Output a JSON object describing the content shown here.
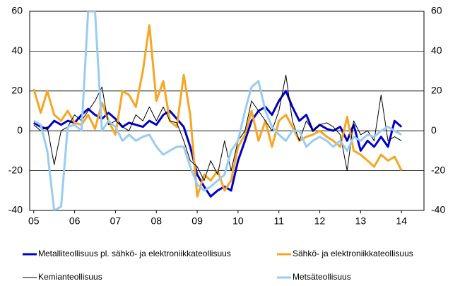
{
  "chart_data": {
    "type": "line",
    "x": [
      2005,
      2005.17,
      2005.33,
      2005.5,
      2005.67,
      2005.83,
      2006,
      2006.17,
      2006.33,
      2006.5,
      2006.67,
      2006.83,
      2007,
      2007.17,
      2007.33,
      2007.5,
      2007.67,
      2007.83,
      2008,
      2008.17,
      2008.33,
      2008.5,
      2008.67,
      2008.83,
      2009,
      2009.17,
      2009.33,
      2009.5,
      2009.67,
      2009.83,
      2010,
      2010.17,
      2010.33,
      2010.5,
      2010.67,
      2010.83,
      2011,
      2011.17,
      2011.33,
      2011.5,
      2011.67,
      2011.83,
      2012,
      2012.17,
      2012.33,
      2012.5,
      2012.67,
      2012.83,
      2013,
      2013.17,
      2013.33,
      2013.5,
      2013.67,
      2013.83,
      2014
    ],
    "series": [
      {
        "name": "Metalliteollisuus pl. sähkö- ja elektroniikkateollisuus",
        "color": "#0000cc",
        "width": 3,
        "values": [
          4,
          2,
          1,
          5,
          3,
          5,
          4,
          8,
          11,
          8,
          6,
          9,
          6,
          2,
          4,
          3,
          2,
          5,
          3,
          8,
          10,
          6,
          2,
          -8,
          -22,
          -28,
          -33,
          -30,
          -28,
          -30,
          -15,
          -5,
          5,
          10,
          12,
          8,
          15,
          20,
          12,
          5,
          8,
          0,
          3,
          1,
          0,
          2,
          -5,
          3,
          -10,
          -5,
          -8,
          -3,
          -8,
          5,
          2
        ]
      },
      {
        "name": "Sähkö- ja elektroniikkateollisuus",
        "color": "#f5a623",
        "width": 3,
        "values": [
          21,
          9,
          20,
          8,
          5,
          10,
          4,
          3,
          8,
          1,
          14,
          5,
          -2,
          20,
          18,
          12,
          30,
          53,
          15,
          25,
          5,
          2,
          28,
          8,
          -33,
          -22,
          -25,
          -20,
          -30,
          -25,
          -8,
          -2,
          10,
          -5,
          5,
          -8,
          5,
          8,
          2,
          -5,
          -3,
          -2,
          0,
          -3,
          -5,
          -8,
          7,
          -10,
          -12,
          -15,
          -18,
          -12,
          -15,
          -13,
          -20
        ]
      },
      {
        "name": "Kemianteollisuus",
        "color": "#000000",
        "width": 1,
        "values": [
          3,
          0,
          2,
          -17,
          0,
          2,
          8,
          5,
          10,
          15,
          22,
          3,
          5,
          2,
          0,
          8,
          5,
          12,
          5,
          12,
          5,
          4,
          -5,
          -15,
          -18,
          -25,
          -15,
          -22,
          -5,
          -20,
          -5,
          0,
          15,
          10,
          5,
          0,
          10,
          28,
          5,
          -5,
          5,
          0,
          3,
          4,
          2,
          -2,
          -20,
          5,
          -2,
          0,
          -5,
          18,
          -5,
          -3,
          -5
        ]
      },
      {
        "name": "Metsäteollisuus",
        "color": "#99ccf0",
        "width": 3,
        "values": [
          5,
          3,
          -10,
          -40,
          -38,
          2,
          3,
          0,
          60,
          60,
          0,
          5,
          2,
          -5,
          -2,
          -5,
          -3,
          -2,
          -8,
          -12,
          -10,
          -8,
          -8,
          -18,
          -27,
          -30,
          -28,
          -25,
          -22,
          -10,
          -5,
          10,
          22,
          25,
          10,
          2,
          -2,
          -5,
          0,
          0,
          -8,
          -5,
          -3,
          -5,
          -8,
          -5,
          -10,
          -3,
          -5,
          -2,
          -3,
          0,
          2,
          0,
          -2
        ]
      }
    ],
    "xlim": [
      2004.9,
      2014.55
    ],
    "xticks": [
      {
        "value": 2005,
        "label": "05"
      },
      {
        "value": 2006,
        "label": "06"
      },
      {
        "value": 2007,
        "label": "07"
      },
      {
        "value": 2008,
        "label": "08"
      },
      {
        "value": 2009,
        "label": "09"
      },
      {
        "value": 2010,
        "label": "10"
      },
      {
        "value": 2011,
        "label": "11"
      },
      {
        "value": 2012,
        "label": "12"
      },
      {
        "value": 2013,
        "label": "13"
      },
      {
        "value": 2014,
        "label": "14"
      }
    ],
    "ylim": [
      -40,
      60
    ],
    "yticks": [
      -40,
      -20,
      0,
      20,
      40,
      60
    ],
    "grid": true
  }
}
